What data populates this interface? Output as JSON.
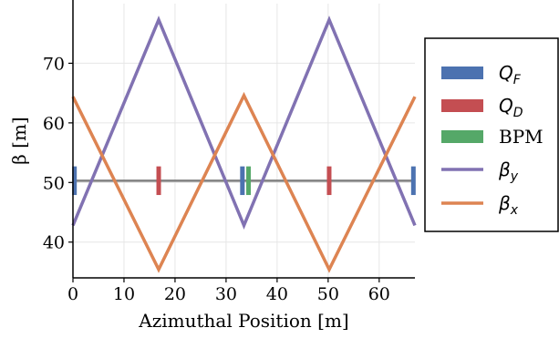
{
  "chart_data": {
    "type": "line",
    "title": "",
    "xlabel": "Azimuthal Position [m]",
    "ylabel": "β [m]",
    "xlim": [
      0,
      67
    ],
    "ylim": [
      34,
      80
    ],
    "grid": true,
    "legend_position": "right-outside",
    "x_ticks": [
      0,
      10,
      20,
      30,
      40,
      50,
      60
    ],
    "y_ticks": [
      40,
      50,
      60,
      70
    ],
    "beamline_y": 50.3,
    "series": [
      {
        "name": "β_y",
        "color": "#8172b2",
        "x": [
          0,
          16.8,
          33.5,
          50.2,
          67
        ],
        "y": [
          42.8,
          77.3,
          42.8,
          77.3,
          42.8
        ]
      },
      {
        "name": "β_x",
        "color": "#dd8452",
        "x": [
          0,
          16.8,
          33.5,
          50.2,
          67
        ],
        "y": [
          64.4,
          35.4,
          64.6,
          35.4,
          64.4
        ]
      }
    ],
    "elements": [
      {
        "type": "Q_F",
        "color": "#4c72b0",
        "positions": [
          0.3,
          33.2,
          66.7
        ]
      },
      {
        "type": "Q_D",
        "color": "#c44e52",
        "positions": [
          16.8,
          50.2
        ]
      },
      {
        "type": "BPM",
        "color": "#55a868",
        "positions": [
          34.4
        ]
      }
    ],
    "element_half_height": 2.4,
    "legend": [
      {
        "kind": "patch",
        "color": "#4c72b0",
        "label_main": "Q",
        "label_sub": "F",
        "serif": false
      },
      {
        "kind": "patch",
        "color": "#c44e52",
        "label_main": "Q",
        "label_sub": "D",
        "serif": false
      },
      {
        "kind": "patch",
        "color": "#55a868",
        "label_main": "BPM",
        "label_sub": "",
        "serif": true
      },
      {
        "kind": "line",
        "color": "#8172b2",
        "label_main": "β",
        "label_sub": "y",
        "serif": false
      },
      {
        "kind": "line",
        "color": "#dd8452",
        "label_main": "β",
        "label_sub": "x",
        "serif": false
      }
    ]
  }
}
